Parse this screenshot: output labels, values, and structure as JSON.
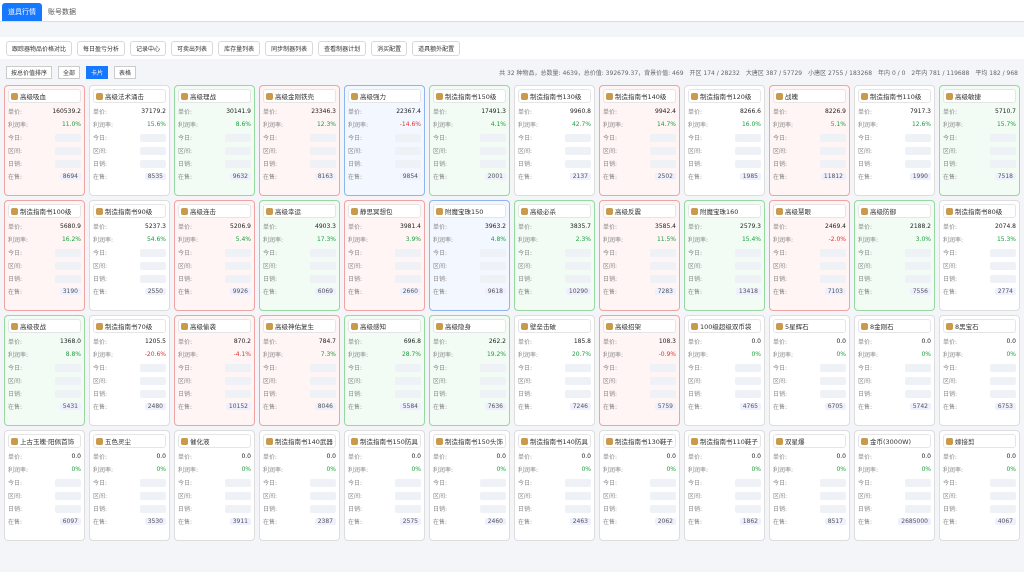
{
  "tabs": [
    "道具行情",
    "账号数据"
  ],
  "toolbar": [
    "跟踪器物品价格对比",
    "每日盈亏分析",
    "记录中心",
    "可卖出列表",
    "库存量列表",
    "同步制器列表",
    "查看制器计划",
    "消买配置",
    "道具额外配置"
  ],
  "filters": {
    "sort": "按总价值排序",
    "scope": "全部",
    "view_card": "卡片",
    "view_table": "表格"
  },
  "stats": [
    "共 32 种物品，总数量: 4639，总价值: 392679.37，背景价值: 469",
    "开区 174 / 28232",
    "大唐区 387 / 57729",
    "小唐区 2755 / 183268",
    "年内 0 / 0",
    "2年内 781 / 119688",
    "平均 182 / 968"
  ],
  "card_labels": [
    "单价:",
    "利润率:",
    "今日:",
    "区间:",
    "日销:",
    "在售:"
  ],
  "cards": [
    {
      "name": "高级吸血",
      "price": "160539.2",
      "rate": "11.0%",
      "stock": "8694",
      "tone": "red"
    },
    {
      "name": "高级法术涌击",
      "price": "37179.2",
      "rate": "15.6%",
      "stock": "8535",
      "tone": "gray"
    },
    {
      "name": "高级理战",
      "price": "30141.9",
      "rate": "8.6%",
      "stock": "9632",
      "tone": "green"
    },
    {
      "name": "高级金刚铁壳",
      "price": "23346.3",
      "rate": "12.3%",
      "stock": "8163",
      "tone": "red"
    },
    {
      "name": "高级强力",
      "price": "22367.4",
      "rate": "-14.6%",
      "stock": "9854",
      "tone": "blue"
    },
    {
      "name": "制造指南书150级",
      "price": "17491.3",
      "rate": "4.1%",
      "stock": "2001",
      "tone": "green"
    },
    {
      "name": "制造指南书130级",
      "price": "9960.8",
      "rate": "42.7%",
      "stock": "2137",
      "tone": "gray"
    },
    {
      "name": "制造指南书140级",
      "price": "9942.4",
      "rate": "14.7%",
      "stock": "2502",
      "tone": "red"
    },
    {
      "name": "制造指南书120级",
      "price": "8266.6",
      "rate": "16.0%",
      "stock": "1985",
      "tone": "gray"
    },
    {
      "name": "战魄",
      "price": "8226.9",
      "rate": "5.1%",
      "stock": "11812",
      "tone": "red"
    },
    {
      "name": "制造指南书110级",
      "price": "7917.3",
      "rate": "12.6%",
      "stock": "1990",
      "tone": "gray"
    },
    {
      "name": "高级敏捷",
      "price": "5710.7",
      "rate": "15.7%",
      "stock": "7518",
      "tone": "green"
    },
    {
      "name": "制造指南书100级",
      "price": "5680.9",
      "rate": "16.2%",
      "stock": "3190",
      "tone": "red"
    },
    {
      "name": "制造指南书90级",
      "price": "5237.3",
      "rate": "54.6%",
      "stock": "2550",
      "tone": "gray"
    },
    {
      "name": "高级连击",
      "price": "5206.9",
      "rate": "5.4%",
      "stock": "9926",
      "tone": "red"
    },
    {
      "name": "高级幸运",
      "price": "4903.3",
      "rate": "17.3%",
      "stock": "6069",
      "tone": "green"
    },
    {
      "name": "静思冥想包",
      "price": "3981.4",
      "rate": "3.9%",
      "stock": "2660",
      "tone": "red"
    },
    {
      "name": "附魔宝珠150",
      "price": "3963.2",
      "rate": "4.8%",
      "stock": "9618",
      "tone": "blue"
    },
    {
      "name": "高级必杀",
      "price": "3835.7",
      "rate": "2.3%",
      "stock": "10290",
      "tone": "green"
    },
    {
      "name": "高级反震",
      "price": "3585.4",
      "rate": "11.5%",
      "stock": "7283",
      "tone": "red"
    },
    {
      "name": "附魔宝珠160",
      "price": "2579.3",
      "rate": "15.4%",
      "stock": "13418",
      "tone": "green"
    },
    {
      "name": "高级慧眼",
      "price": "2469.4",
      "rate": "-2.0%",
      "stock": "7103",
      "tone": "red"
    },
    {
      "name": "高级防御",
      "price": "2188.2",
      "rate": "3.0%",
      "stock": "7556",
      "tone": "green"
    },
    {
      "name": "制造指南书80级",
      "price": "2074.8",
      "rate": "15.3%",
      "stock": "2774",
      "tone": "gray"
    },
    {
      "name": "高级夜战",
      "price": "1368.0",
      "rate": "8.8%",
      "stock": "5431",
      "tone": "green"
    },
    {
      "name": "制造指南书70级",
      "price": "1205.5",
      "rate": "-20.6%",
      "stock": "2480",
      "tone": "gray"
    },
    {
      "name": "高级偷袭",
      "price": "870.2",
      "rate": "-4.1%",
      "stock": "10152",
      "tone": "red"
    },
    {
      "name": "高级神佑复生",
      "price": "784.7",
      "rate": "7.3%",
      "stock": "8046",
      "tone": "red"
    },
    {
      "name": "高级感知",
      "price": "696.8",
      "rate": "28.7%",
      "stock": "5584",
      "tone": "green"
    },
    {
      "name": "高级隐身",
      "price": "262.2",
      "rate": "19.2%",
      "stock": "7636",
      "tone": "green"
    },
    {
      "name": "壁垒击破",
      "price": "185.8",
      "rate": "20.7%",
      "stock": "7246",
      "tone": "gray"
    },
    {
      "name": "高级招架",
      "price": "108.3",
      "rate": "-0.9%",
      "stock": "5759",
      "tone": "red"
    },
    {
      "name": "100级超级双币袋",
      "price": "0.0",
      "rate": "0%",
      "stock": "4765",
      "tone": "gray"
    },
    {
      "name": "5星辉石",
      "price": "0.0",
      "rate": "0%",
      "stock": "6705",
      "tone": "gray"
    },
    {
      "name": "8金刚石",
      "price": "0.0",
      "rate": "0%",
      "stock": "5742",
      "tone": "gray"
    },
    {
      "name": "8黑宝石",
      "price": "0.0",
      "rate": "0%",
      "stock": "6753",
      "tone": "gray"
    },
    {
      "name": "上古玉魄·阳佩首饰",
      "price": "0.0",
      "rate": "0%",
      "stock": "6097",
      "tone": "gray"
    },
    {
      "name": "五色灵尘",
      "price": "0.0",
      "rate": "0%",
      "stock": "3530",
      "tone": "gray"
    },
    {
      "name": "催化液",
      "price": "0.0",
      "rate": "0%",
      "stock": "3911",
      "tone": "gray"
    },
    {
      "name": "制造指南书140武器",
      "price": "0.0",
      "rate": "0%",
      "stock": "2387",
      "tone": "gray"
    },
    {
      "name": "制造指南书150防具",
      "price": "0.0",
      "rate": "0%",
      "stock": "2575",
      "tone": "gray"
    },
    {
      "name": "制造指南书150头饰",
      "price": "0.0",
      "rate": "0%",
      "stock": "2460",
      "tone": "gray"
    },
    {
      "name": "制造指南书140防具",
      "price": "0.0",
      "rate": "0%",
      "stock": "2463",
      "tone": "gray"
    },
    {
      "name": "制造指南书130鞋子",
      "price": "0.0",
      "rate": "0%",
      "stock": "2062",
      "tone": "gray"
    },
    {
      "name": "制造指南书110鞋子",
      "price": "0.0",
      "rate": "0%",
      "stock": "1862",
      "tone": "gray"
    },
    {
      "name": "双星爆",
      "price": "0.0",
      "rate": "0%",
      "stock": "8517",
      "tone": "gray"
    },
    {
      "name": "金币(3000W)",
      "price": "0.0",
      "rate": "0%",
      "stock": "2685000",
      "tone": "gray"
    },
    {
      "name": "嫁接剪",
      "price": "0.0",
      "rate": "0%",
      "stock": "4067",
      "tone": "gray"
    }
  ]
}
